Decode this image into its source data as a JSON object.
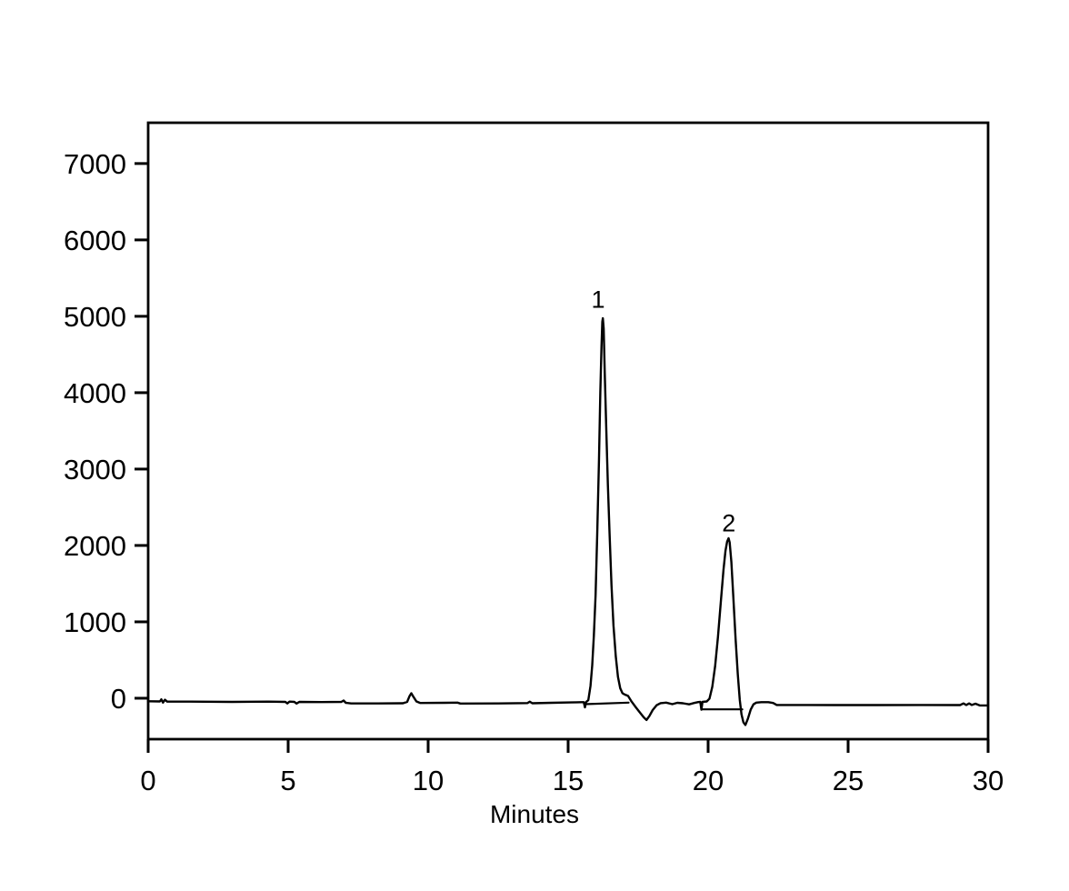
{
  "page": {
    "background": "#ffffff",
    "foreground": "#000000"
  },
  "chart_data": {
    "type": "line",
    "title": "",
    "xlabel": "Minutes",
    "ylabel": "",
    "xlim": [
      0,
      30
    ],
    "ylim": [
      -536,
      7534
    ],
    "x_ticks": [
      0,
      5,
      10,
      15,
      20,
      25,
      30
    ],
    "y_ticks": [
      0,
      1000,
      2000,
      3000,
      4000,
      5000,
      6000,
      7000
    ],
    "grid": false,
    "legend": false,
    "frame": true,
    "line_color": "#000000",
    "background": "#ffffff",
    "peaks": [
      {
        "label": "1",
        "retention_time_min": 16.24,
        "apex_height": 4975
      },
      {
        "label": "2",
        "retention_time_min": 20.73,
        "apex_height": 2095
      }
    ],
    "annotations": [
      {
        "text": "1",
        "t": 16.07,
        "v": 5220
      },
      {
        "text": "2",
        "t": 20.74,
        "v": 2290
      }
    ],
    "series": [
      {
        "name": "detector-signal",
        "width": 2.4,
        "points": [
          [
            0,
            -40
          ],
          [
            0.42,
            -42
          ],
          [
            0.47,
            -15
          ],
          [
            0.53,
            -58
          ],
          [
            0.6,
            -20
          ],
          [
            0.68,
            -45
          ],
          [
            1.5,
            -45
          ],
          [
            3,
            -48
          ],
          [
            4.3,
            -45
          ],
          [
            4.9,
            -48
          ],
          [
            4.97,
            -68
          ],
          [
            5.05,
            -45
          ],
          [
            5.22,
            -48
          ],
          [
            5.3,
            -70
          ],
          [
            5.4,
            -48
          ],
          [
            6.2,
            -50
          ],
          [
            6.9,
            -48
          ],
          [
            6.98,
            -30
          ],
          [
            7.06,
            -60
          ],
          [
            7.25,
            -68
          ],
          [
            8.2,
            -68
          ],
          [
            9.1,
            -66
          ],
          [
            9.25,
            -48
          ],
          [
            9.33,
            25
          ],
          [
            9.4,
            65
          ],
          [
            9.48,
            15
          ],
          [
            9.58,
            -42
          ],
          [
            9.72,
            -62
          ],
          [
            10.6,
            -60
          ],
          [
            11.05,
            -58
          ],
          [
            11.15,
            -70
          ],
          [
            12.5,
            -68
          ],
          [
            13.55,
            -64
          ],
          [
            13.63,
            -45
          ],
          [
            13.72,
            -66
          ],
          [
            14.4,
            -60
          ],
          [
            15.1,
            -55
          ],
          [
            15.5,
            -52
          ],
          [
            15.56,
            -52
          ],
          [
            15.6,
            -120
          ],
          [
            15.64,
            -50
          ],
          [
            15.72,
            -25
          ],
          [
            15.8,
            160
          ],
          [
            15.86,
            430
          ],
          [
            15.92,
            820
          ],
          [
            15.98,
            1350
          ],
          [
            16.04,
            2150
          ],
          [
            16.1,
            3100
          ],
          [
            16.15,
            4000
          ],
          [
            16.19,
            4600
          ],
          [
            16.22,
            4930
          ],
          [
            16.24,
            4975
          ],
          [
            16.27,
            4840
          ],
          [
            16.31,
            4250
          ],
          [
            16.36,
            3550
          ],
          [
            16.42,
            2800
          ],
          [
            16.48,
            2150
          ],
          [
            16.55,
            1480
          ],
          [
            16.62,
            950
          ],
          [
            16.7,
            550
          ],
          [
            16.78,
            280
          ],
          [
            16.86,
            130
          ],
          [
            16.94,
            65
          ],
          [
            17.02,
            48
          ],
          [
            17.14,
            30
          ],
          [
            17.25,
            -35
          ],
          [
            17.42,
            -120
          ],
          [
            17.58,
            -195
          ],
          [
            17.7,
            -250
          ],
          [
            17.8,
            -285
          ],
          [
            17.9,
            -235
          ],
          [
            18.02,
            -155
          ],
          [
            18.16,
            -92
          ],
          [
            18.3,
            -65
          ],
          [
            18.5,
            -58
          ],
          [
            18.72,
            -78
          ],
          [
            18.9,
            -60
          ],
          [
            19.1,
            -66
          ],
          [
            19.32,
            -80
          ],
          [
            19.5,
            -62
          ],
          [
            19.65,
            -50
          ],
          [
            19.72,
            -48
          ],
          [
            19.76,
            -150
          ],
          [
            19.8,
            -48
          ],
          [
            19.95,
            -42
          ],
          [
            20.05,
            -5
          ],
          [
            20.15,
            150
          ],
          [
            20.25,
            420
          ],
          [
            20.35,
            800
          ],
          [
            20.45,
            1250
          ],
          [
            20.55,
            1680
          ],
          [
            20.62,
            1930
          ],
          [
            20.68,
            2050
          ],
          [
            20.73,
            2095
          ],
          [
            20.77,
            2040
          ],
          [
            20.83,
            1780
          ],
          [
            20.9,
            1330
          ],
          [
            20.98,
            780
          ],
          [
            21.06,
            320
          ],
          [
            21.13,
            -20
          ],
          [
            21.19,
            -210
          ],
          [
            21.26,
            -315
          ],
          [
            21.33,
            -350
          ],
          [
            21.42,
            -270
          ],
          [
            21.52,
            -150
          ],
          [
            21.62,
            -80
          ],
          [
            21.72,
            -58
          ],
          [
            21.9,
            -52
          ],
          [
            22.15,
            -52
          ],
          [
            22.32,
            -62
          ],
          [
            22.45,
            -88
          ],
          [
            23.2,
            -88
          ],
          [
            24.5,
            -90
          ],
          [
            26,
            -90
          ],
          [
            27.5,
            -88
          ],
          [
            29,
            -90
          ],
          [
            29.12,
            -68
          ],
          [
            29.22,
            -88
          ],
          [
            29.32,
            -68
          ],
          [
            29.42,
            -88
          ],
          [
            29.55,
            -72
          ],
          [
            29.7,
            -95
          ],
          [
            30,
            -95
          ]
        ]
      },
      {
        "name": "integration-baseline-peak-1",
        "width": 2.2,
        "points": [
          [
            15.6,
            -78
          ],
          [
            17.16,
            -58
          ]
        ]
      },
      {
        "name": "integration-baseline-peak-2",
        "width": 2.2,
        "points": [
          [
            19.78,
            -145
          ],
          [
            21.22,
            -145
          ]
        ]
      }
    ]
  }
}
